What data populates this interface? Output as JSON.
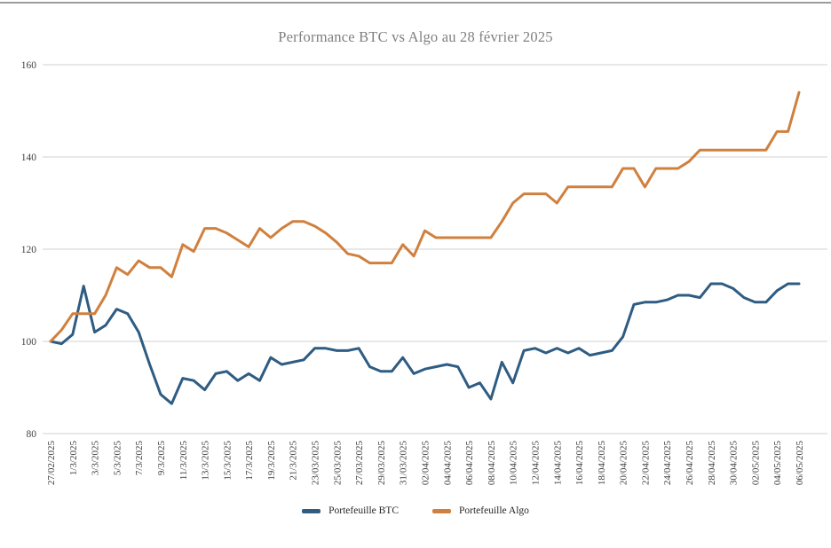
{
  "chart_data": {
    "type": "line",
    "title": "Performance BTC vs Algo au 28 février 2025",
    "x_tick_labels": [
      "27/02/2025",
      "1/3/2025",
      "3/3/2025",
      "5/3/2025",
      "7/3/2025",
      "9/3/2025",
      "11/3/2025",
      "13/3/2025",
      "15/3/2025",
      "17/3/2025",
      "19/3/2025",
      "21/3/2025",
      "23/03/2025",
      "25/03/2025",
      "27/03/2025",
      "29/03/2025",
      "31/03/2025",
      "02/04/2025",
      "04/04/2025",
      "06/04/2025",
      "08/04/2025",
      "10/04/2025",
      "12/04/2025",
      "14/04/2025",
      "16/04/2025",
      "18/04/2025",
      "20/04/2025",
      "22/04/2025",
      "24/04/2025",
      "26/04/2025",
      "28/04/2025",
      "30/04/2025",
      "02/05/2025",
      "04/05/2025",
      "06/05/2025"
    ],
    "x_label_every_n_points": 2,
    "yticks": [
      80,
      100,
      120,
      140,
      160
    ],
    "ylim": [
      80,
      160
    ],
    "grid": true,
    "legend_position": "bottom",
    "colors": {
      "grid": "#d9d9d9",
      "tick_text": "#404040",
      "title_text": "#7f7f7f",
      "legend_text": "#262626",
      "top_rule": "#9c9c9c"
    },
    "series": [
      {
        "name": "Portefeuille BTC",
        "color": "#2e5c82",
        "values": [
          100,
          99.5,
          101.5,
          112,
          102,
          103.5,
          107,
          106,
          102,
          95,
          88.5,
          86.5,
          92,
          91.5,
          89.5,
          93,
          93.5,
          91.5,
          93,
          91.5,
          96.5,
          95,
          95.5,
          96,
          98.5,
          98.5,
          98,
          98,
          98.5,
          94.5,
          93.5,
          93.5,
          96.5,
          93,
          94,
          94.5,
          95,
          94.5,
          90,
          91,
          87.5,
          95.5,
          91,
          98,
          98.5,
          97.5,
          98.5,
          97.5,
          98.5,
          97,
          97.5,
          98,
          101,
          108,
          108.5,
          108.5,
          109,
          110,
          110,
          109.5,
          112.5,
          112.5,
          111.5,
          109.5,
          108.5,
          108.5,
          111,
          112.5,
          112.5
        ]
      },
      {
        "name": "Portefeuille Algo",
        "color": "#d0803e",
        "values": [
          100,
          102.5,
          106,
          106,
          106,
          110,
          116,
          114.5,
          117.5,
          116,
          116,
          114,
          121,
          119.5,
          124.5,
          124.5,
          123.5,
          122,
          120.5,
          124.5,
          122.5,
          124.5,
          126,
          126,
          125,
          123.5,
          121.5,
          119,
          118.5,
          117,
          117,
          117,
          121,
          118.5,
          124,
          122.5,
          122.5,
          122.5,
          122.5,
          122.5,
          122.5,
          126,
          130,
          132,
          132,
          132,
          130,
          133.5,
          133.5,
          133.5,
          133.5,
          133.5,
          137.5,
          137.5,
          133.5,
          137.5,
          137.5,
          137.5,
          139,
          141.5,
          141.5,
          141.5,
          141.5,
          141.5,
          141.5,
          141.5,
          145.5,
          145.5,
          154
        ]
      }
    ]
  }
}
